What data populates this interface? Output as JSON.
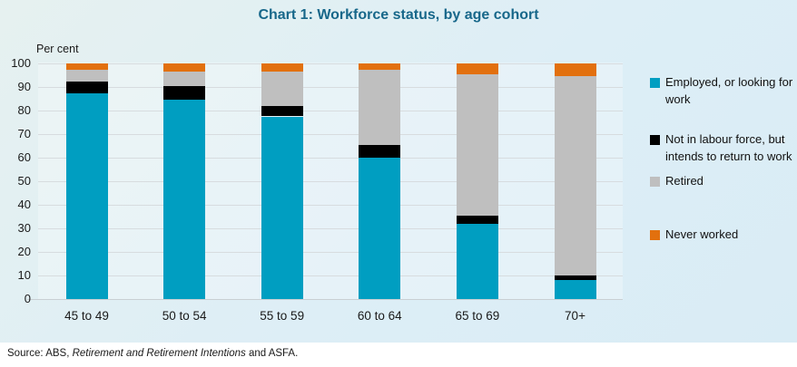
{
  "title": "Chart 1: Workforce status, by age cohort",
  "y_axis_title": "Per cent",
  "source": {
    "prefix": "Source: ABS, ",
    "italic": "Retirement and Retirement Intentions",
    "suffix": " and ASFA."
  },
  "colors": {
    "panel_background": "#ddeef6",
    "title": "#17678a",
    "gridline": "#d7dcdf",
    "axis_line": "#c9cfd3",
    "text": "#1a1a1a"
  },
  "chart_data": {
    "type": "bar",
    "stacked": true,
    "title": "Chart 1: Workforce status, by age cohort",
    "ylabel": "Per cent",
    "ylim": [
      0,
      100
    ],
    "yticks": [
      0,
      10,
      20,
      30,
      40,
      50,
      60,
      70,
      80,
      90,
      100
    ],
    "grid": true,
    "legend_position": "right",
    "categories": [
      "45 to 49",
      "50 to 54",
      "55 to 59",
      "60 to 64",
      "65 to 69",
      "70+"
    ],
    "series": [
      {
        "name": "Employed, or looking for work",
        "color": "#009ec1",
        "values": [
          87.5,
          84.5,
          77.5,
          60,
          32,
          8
        ]
      },
      {
        "name": "Not in labour force, but intends to return to work",
        "color": "#000000",
        "values": [
          5,
          6,
          4.5,
          5.5,
          3.5,
          2
        ]
      },
      {
        "name": "Retired",
        "color": "#bfbfbf",
        "values": [
          5,
          6,
          14.5,
          32,
          60,
          84.5
        ]
      },
      {
        "name": "Never worked",
        "color": "#e2700e",
        "values": [
          2.5,
          3.5,
          3.5,
          2.5,
          4.5,
          5.5
        ]
      }
    ]
  }
}
